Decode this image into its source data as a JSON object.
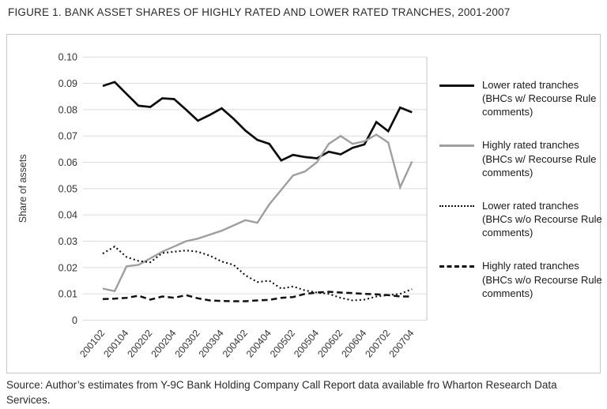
{
  "title": "FIGURE 1. BANK ASSET SHARES OF HIGHLY RATED AND LOWER RATED TRANCHES, 2001-2007",
  "source": "Source: Author’s estimates from Y-9C Bank Holding Company Call Report data available fro Wharton Research Data Services.",
  "colors": {
    "black_line": "#0d0d0d",
    "gray_line": "#9f9f9f",
    "gridline": "#dcdcdc",
    "panel_border": "#c6c6c6",
    "text": "#2a2a2a"
  },
  "chart_data": {
    "type": "line",
    "title": "FIGURE 1. BANK ASSET SHARES OF HIGHLY RATED AND LOWER RATED TRANCHES, 2001-2007",
    "xlabel": "",
    "ylabel": "Share of assets",
    "ylim": [
      0,
      0.1
    ],
    "ytick_labels": [
      "0.10",
      "0.09",
      "0.08",
      "0.07",
      "0.06",
      "0.05",
      "0.04",
      "0.03",
      "0.02",
      "0.01",
      "0"
    ],
    "grid": "horizontal",
    "legend_position": "right",
    "n_points": 27,
    "x_labels": [
      "200102",
      "200104",
      "200202",
      "200204",
      "200302",
      "200304",
      "200402",
      "200404",
      "200502",
      "200504",
      "200602",
      "200604",
      "200702",
      "200704"
    ],
    "x_label_indices": [
      0,
      2,
      4,
      6,
      8,
      10,
      12,
      14,
      16,
      18,
      20,
      22,
      24,
      26
    ],
    "series": [
      {
        "id": "lower-rated-with-comments",
        "name": "Lower rated tranches (BHCs w/ Recourse Rule comments)",
        "style": "solid",
        "color": "#0d0d0d",
        "width": 2.7,
        "values": [
          0.089,
          0.0905,
          0.086,
          0.0815,
          0.081,
          0.0843,
          0.084,
          0.08,
          0.0758,
          0.078,
          0.0805,
          0.0765,
          0.072,
          0.0685,
          0.067,
          0.0607,
          0.0628,
          0.062,
          0.0615,
          0.064,
          0.063,
          0.0655,
          0.0668,
          0.0753,
          0.0718,
          0.0808,
          0.079
        ]
      },
      {
        "id": "highly-rated-with-comments",
        "name": "Highly rated tranches (BHCs w/ Recourse Rule comments)",
        "style": "solid",
        "color": "#9f9f9f",
        "width": 2.4,
        "values": [
          0.012,
          0.011,
          0.0205,
          0.021,
          0.0235,
          0.026,
          0.028,
          0.03,
          0.031,
          0.0325,
          0.034,
          0.036,
          0.038,
          0.037,
          0.044,
          0.0495,
          0.055,
          0.0565,
          0.06,
          0.067,
          0.07,
          0.067,
          0.068,
          0.0705,
          0.0675,
          0.0505,
          0.0603
        ]
      },
      {
        "id": "lower-rated-without-comments",
        "name": "Lower rated tranches (BHCs w/o Recourse Rule comments)",
        "style": "dotted",
        "color": "#111111",
        "width": 2.1,
        "values": [
          0.0253,
          0.028,
          0.024,
          0.0225,
          0.022,
          0.0255,
          0.026,
          0.0265,
          0.026,
          0.0245,
          0.0223,
          0.021,
          0.017,
          0.0145,
          0.015,
          0.012,
          0.0128,
          0.0113,
          0.0105,
          0.01,
          0.0085,
          0.0075,
          0.0078,
          0.009,
          0.0095,
          0.01,
          0.0118
        ]
      },
      {
        "id": "highly-rated-without-comments",
        "name": "Highly rated tranches (BHCs w/o Recourse Rule comments)",
        "style": "dashed",
        "color": "#111111",
        "width": 2.5,
        "values": [
          0.008,
          0.0082,
          0.0085,
          0.0093,
          0.0078,
          0.009,
          0.0085,
          0.0095,
          0.0083,
          0.0075,
          0.0073,
          0.0072,
          0.0072,
          0.0075,
          0.0077,
          0.0085,
          0.0088,
          0.01,
          0.0105,
          0.0108,
          0.0105,
          0.0103,
          0.01,
          0.0098,
          0.0095,
          0.009,
          0.009
        ]
      }
    ]
  }
}
